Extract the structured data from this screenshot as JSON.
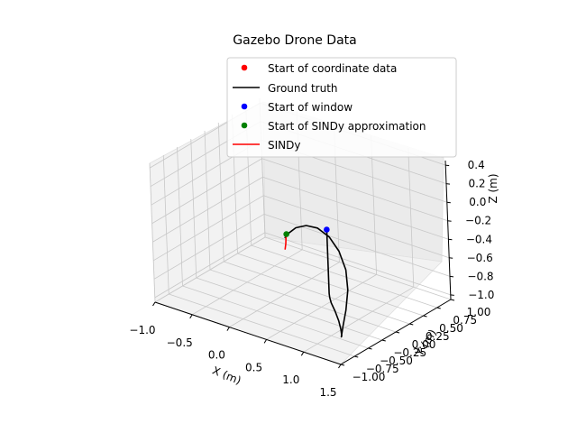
{
  "chart_data": {
    "type": "line",
    "projection": "3d",
    "title": "Gazebo Drone Data",
    "xlabel": "X (m)",
    "ylabel": "Y (m)",
    "zlabel": "Z (m)",
    "xlim": [
      -1.0,
      1.5
    ],
    "ylim": [
      -1.0,
      1.0
    ],
    "zlim": [
      -1.05,
      0.45
    ],
    "x_ticks": [
      "-1.0",
      "-0.5",
      "0.0",
      "0.5",
      "1.0",
      "1.5"
    ],
    "y_ticks": [
      "-1.00",
      "-0.75",
      "-0.50",
      "-0.25",
      "0.00",
      "0.25",
      "0.50",
      "0.75",
      "1.00"
    ],
    "z_ticks": [
      "-1.0",
      "-0.8",
      "-0.6",
      "-0.4",
      "-0.2",
      "0.0",
      "0.2",
      "0.4"
    ],
    "grid": true,
    "legend_position": "top-right",
    "legend": [
      {
        "label": "Start of coordinate data",
        "kind": "marker",
        "color": "#ff0000"
      },
      {
        "label": "Ground truth",
        "kind": "line",
        "color": "#000000"
      },
      {
        "label": "Start of window",
        "kind": "marker",
        "color": "#0000ff"
      },
      {
        "label": "Start of SINDy approximation",
        "kind": "marker",
        "color": "#008000"
      },
      {
        "label": "SINDy",
        "kind": "line",
        "color": "#ff0000"
      }
    ],
    "series": [
      {
        "name": "Ground truth",
        "type": "line",
        "color": "#000000",
        "x": [
          0.52,
          0.52,
          0.52,
          0.54,
          0.62,
          0.76,
          0.92,
          1.06,
          1.16,
          1.2,
          1.18,
          1.1,
          0.96,
          0.76,
          0.5,
          0.22,
          -0.05,
          -0.28,
          -0.46,
          -0.58,
          -0.64
        ],
        "y": [
          0.12,
          0.12,
          0.12,
          0.1,
          0.02,
          -0.1,
          -0.25,
          -0.4,
          -0.52,
          -0.58,
          -0.52,
          -0.35,
          -0.12,
          0.12,
          0.35,
          0.55,
          0.7,
          0.8,
          0.85,
          0.87,
          0.88
        ],
        "z": [
          -0.25,
          -0.55,
          -0.94,
          -0.97,
          -0.98,
          -0.99,
          -1.0,
          -1.0,
          -1.0,
          -0.98,
          -0.9,
          -0.8,
          -0.7,
          -0.62,
          -0.57,
          -0.56,
          -0.59,
          -0.66,
          -0.75,
          -0.85,
          -0.92
        ]
      },
      {
        "name": "SINDy",
        "type": "line",
        "color": "#ff0000",
        "x": [
          -0.6,
          -0.6,
          -0.59,
          -0.58
        ],
        "y": [
          0.86,
          0.85,
          0.83,
          0.8
        ],
        "z": [
          -0.86,
          -0.9,
          -0.95,
          -1.0
        ]
      }
    ],
    "points": [
      {
        "name": "Start of window",
        "color": "#0000ff",
        "x": 0.52,
        "y": 0.12,
        "z": -0.25
      },
      {
        "name": "Start of SINDy approximation",
        "color": "#008000",
        "x": -0.6,
        "y": 0.86,
        "z": -0.86
      }
    ]
  }
}
